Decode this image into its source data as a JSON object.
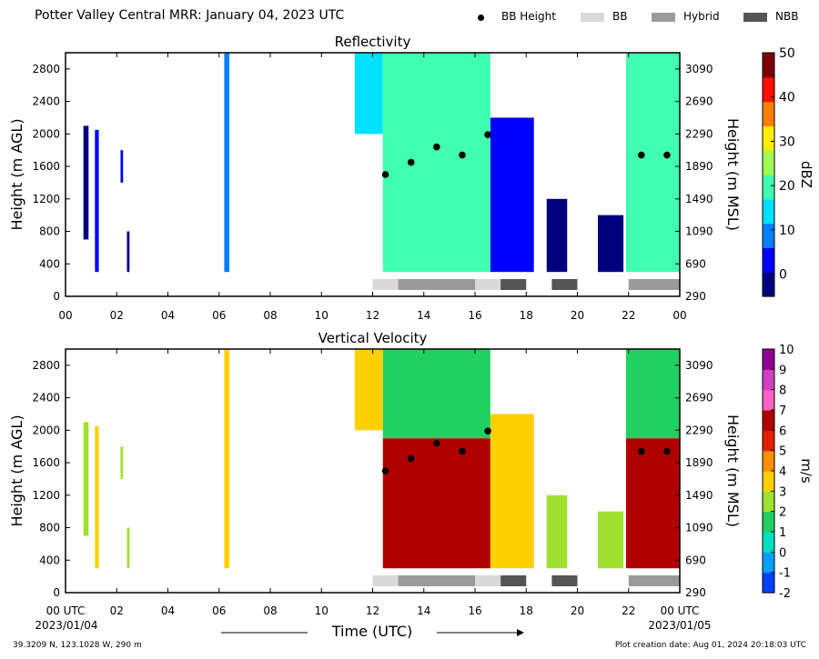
{
  "header": {
    "title": "Potter Valley Central MRR:  January 04, 2023 UTC"
  },
  "legend": [
    {
      "name": "BB Height",
      "marker": "dot",
      "color": "#000000"
    },
    {
      "name": "BB",
      "marker": "box",
      "color": "#d9d9d9"
    },
    {
      "name": "Hybrid",
      "marker": "box",
      "color": "#9a9a9a"
    },
    {
      "name": "NBB",
      "marker": "box",
      "color": "#555555"
    }
  ],
  "footer": {
    "location": "39.3209 N, 123.1028 W, 290 m",
    "created": "Plot creation date: Aug 01, 2024 20:18:03 UTC",
    "date_start": "2023/01/04",
    "date_end": "2023/01/05",
    "time_label": "Time (UTC)"
  },
  "chart_data": [
    {
      "type": "heatmap",
      "title": "Reflectivity",
      "ylabel": "Height (m AGL)",
      "ylabel_right": "Height (m MSL)",
      "colorbar_label": "dBZ",
      "xlim": [
        0,
        24
      ],
      "ylim": [
        0,
        3000
      ],
      "grid": false,
      "x_ticks": [
        "00",
        "02",
        "04",
        "06",
        "08",
        "10",
        "12",
        "14",
        "16",
        "18",
        "20",
        "22",
        "00"
      ],
      "y_ticks": [
        0,
        400,
        800,
        1200,
        1600,
        2000,
        2400,
        2800
      ],
      "y_ticks_right": [
        290,
        690,
        1090,
        1490,
        1890,
        2290,
        2690,
        3090
      ],
      "colorbar_range": [
        -5,
        50
      ],
      "colorbar_ticks": [
        0,
        10,
        20,
        30,
        40,
        50
      ],
      "colors": [
        "#00007f",
        "#0000ff",
        "#0080ff",
        "#00e0ff",
        "#40ffb0",
        "#a0ff50",
        "#ffee00",
        "#ff8000",
        "#ff1000",
        "#7f0000"
      ],
      "bb_height": [
        {
          "x": 12.5,
          "y": 1500
        },
        {
          "x": 13.5,
          "y": 1650
        },
        {
          "x": 14.5,
          "y": 1840
        },
        {
          "x": 15.5,
          "y": 1740
        },
        {
          "x": 16.5,
          "y": 1990
        },
        {
          "x": 22.5,
          "y": 1740
        },
        {
          "x": 23.5,
          "y": 1740
        }
      ],
      "bb_types": [
        {
          "start": 12.0,
          "end": 13.0,
          "type": "BB"
        },
        {
          "start": 13.0,
          "end": 16.0,
          "type": "Hybrid"
        },
        {
          "start": 16.0,
          "end": 17.0,
          "type": "BB"
        },
        {
          "start": 17.0,
          "end": 18.0,
          "type": "NBB"
        },
        {
          "start": 19.0,
          "end": 20.0,
          "type": "NBB"
        },
        {
          "start": 22.0,
          "end": 24.0,
          "type": "Hybrid"
        }
      ],
      "echoes": [
        {
          "x0": 0.7,
          "x1": 0.9,
          "y0": 700,
          "y1": 2100,
          "value": 0
        },
        {
          "x0": 1.15,
          "x1": 1.3,
          "y0": 300,
          "y1": 2050,
          "value": 2
        },
        {
          "x0": 2.15,
          "x1": 2.25,
          "y0": 1400,
          "y1": 1800,
          "value": 3
        },
        {
          "x0": 2.4,
          "x1": 2.5,
          "y0": 300,
          "y1": 800,
          "value": 0
        },
        {
          "x0": 6.2,
          "x1": 6.4,
          "y0": 300,
          "y1": 3000,
          "value": 10
        },
        {
          "x0": 11.3,
          "x1": 12.4,
          "y0": 2000,
          "y1": 3000,
          "value": 14
        },
        {
          "x0": 12.4,
          "x1": 16.6,
          "y0": 300,
          "y1": 3000,
          "value": 18
        },
        {
          "x0": 16.6,
          "x1": 18.3,
          "y0": 300,
          "y1": 2200,
          "value": 3
        },
        {
          "x0": 18.8,
          "x1": 19.6,
          "y0": 300,
          "y1": 1200,
          "value": 0
        },
        {
          "x0": 20.8,
          "x1": 21.8,
          "y0": 300,
          "y1": 1000,
          "value": 0
        },
        {
          "x0": 21.9,
          "x1": 24.0,
          "y0": 300,
          "y1": 3000,
          "value": 18
        }
      ]
    },
    {
      "type": "heatmap",
      "title": "Vertical Velocity",
      "ylabel": "Height (m AGL)",
      "ylabel_right": "Height (m MSL)",
      "colorbar_label": "m/s",
      "xlim": [
        0,
        24
      ],
      "ylim": [
        0,
        3000
      ],
      "grid": false,
      "x_ticks": [
        "00 UTC",
        "02",
        "04",
        "06",
        "08",
        "10",
        "12",
        "14",
        "16",
        "18",
        "20",
        "22",
        "00 UTC"
      ],
      "y_ticks": [
        0,
        400,
        800,
        1200,
        1600,
        2000,
        2400,
        2800
      ],
      "y_ticks_right": [
        290,
        690,
        1090,
        1490,
        1890,
        2290,
        2690,
        3090
      ],
      "colorbar_range": [
        -2,
        10
      ],
      "colorbar_ticks": [
        -2,
        -1,
        0,
        1,
        2,
        3,
        4,
        5,
        6,
        7,
        8,
        9,
        10
      ],
      "colors": [
        "#0040ff",
        "#00a0ff",
        "#00e0c0",
        "#20d060",
        "#a0e030",
        "#ffd000",
        "#ff9000",
        "#e02000",
        "#b00000",
        "#ff60c0",
        "#d040c0",
        "#900090"
      ],
      "bb_height": [
        {
          "x": 12.5,
          "y": 1500
        },
        {
          "x": 13.5,
          "y": 1650
        },
        {
          "x": 14.5,
          "y": 1840
        },
        {
          "x": 15.5,
          "y": 1740
        },
        {
          "x": 16.5,
          "y": 1990
        },
        {
          "x": 22.5,
          "y": 1740
        },
        {
          "x": 23.5,
          "y": 1740
        }
      ],
      "bb_types": [
        {
          "start": 12.0,
          "end": 13.0,
          "type": "BB"
        },
        {
          "start": 13.0,
          "end": 16.0,
          "type": "Hybrid"
        },
        {
          "start": 16.0,
          "end": 17.0,
          "type": "BB"
        },
        {
          "start": 17.0,
          "end": 18.0,
          "type": "NBB"
        },
        {
          "start": 19.0,
          "end": 20.0,
          "type": "NBB"
        },
        {
          "start": 22.0,
          "end": 24.0,
          "type": "Hybrid"
        }
      ],
      "echoes": [
        {
          "x0": 0.7,
          "x1": 0.9,
          "y0": 700,
          "y1": 2100,
          "value": 2.5
        },
        {
          "x0": 1.15,
          "x1": 1.3,
          "y0": 300,
          "y1": 2050,
          "value": 3.5
        },
        {
          "x0": 2.15,
          "x1": 2.25,
          "y0": 1400,
          "y1": 1800,
          "value": 2
        },
        {
          "x0": 2.4,
          "x1": 2.5,
          "y0": 300,
          "y1": 800,
          "value": 2
        },
        {
          "x0": 6.2,
          "x1": 6.4,
          "y0": 300,
          "y1": 3000,
          "value": 3
        },
        {
          "x0": 11.3,
          "x1": 12.4,
          "y0": 2000,
          "y1": 3000,
          "value": 3
        },
        {
          "x0": 12.4,
          "x1": 16.6,
          "y0": 1900,
          "y1": 3000,
          "value": 1.5
        },
        {
          "x0": 12.4,
          "x1": 16.6,
          "y0": 300,
          "y1": 1900,
          "value": 6.5
        },
        {
          "x0": 16.6,
          "x1": 18.3,
          "y0": 300,
          "y1": 2200,
          "value": 3.5
        },
        {
          "x0": 18.8,
          "x1": 19.6,
          "y0": 300,
          "y1": 1200,
          "value": 2
        },
        {
          "x0": 20.8,
          "x1": 21.8,
          "y0": 300,
          "y1": 1000,
          "value": 2
        },
        {
          "x0": 21.9,
          "x1": 24.0,
          "y0": 1900,
          "y1": 3000,
          "value": 1.5
        },
        {
          "x0": 21.9,
          "x1": 24.0,
          "y0": 300,
          "y1": 1900,
          "value": 6
        }
      ]
    }
  ]
}
